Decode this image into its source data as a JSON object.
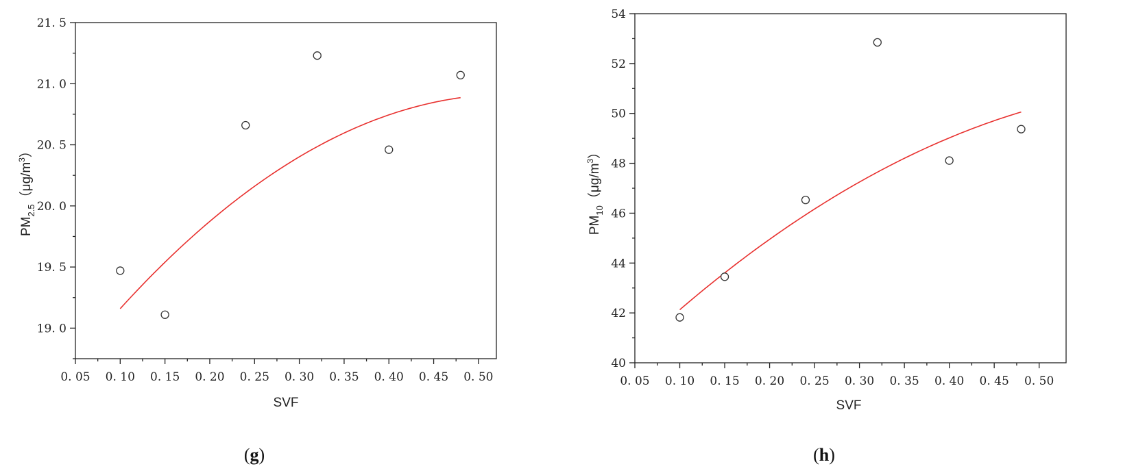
{
  "chart_data": [
    {
      "type": "scatter",
      "panel_label": "g",
      "xlabel": "SVF",
      "ylabel": {
        "base": "PM",
        "sub": "2.5",
        "unit_open": "（μg/m",
        "unit_sup": "3",
        "unit_close": "）"
      },
      "xlim": [
        0.05,
        0.52
      ],
      "ylim": [
        18.75,
        21.5
      ],
      "xticks": [
        0.05,
        0.1,
        0.15,
        0.2,
        0.25,
        0.3,
        0.35,
        0.4,
        0.45,
        0.5
      ],
      "xtick_labels": [
        "0. 05",
        "0. 10",
        "0. 15",
        "0. 20",
        "0. 25",
        "0. 30",
        "0. 35",
        "0. 40",
        "0. 45",
        "0. 50"
      ],
      "yticks": [
        19.0,
        19.5,
        20.0,
        20.5,
        21.0,
        21.5
      ],
      "ytick_labels": [
        "19. 0",
        "19. 5",
        "20. 0",
        "20. 5",
        "21. 0",
        "21. 5"
      ],
      "points": [
        {
          "x": 0.1,
          "y": 19.47
        },
        {
          "x": 0.15,
          "y": 19.11
        },
        {
          "x": 0.24,
          "y": 20.66
        },
        {
          "x": 0.32,
          "y": 21.23
        },
        {
          "x": 0.4,
          "y": 20.46
        },
        {
          "x": 0.48,
          "y": 21.07
        }
      ],
      "fit": {
        "kind": "quadratic",
        "a": -9.27,
        "b": 9.92,
        "c": 18.26,
        "x_range": [
          0.1,
          0.48
        ]
      },
      "fit_color": "#e8302e",
      "grid": false
    },
    {
      "type": "scatter",
      "panel_label": "h",
      "xlabel": "SVF",
      "ylabel": {
        "base": "PM",
        "sub": "10",
        "unit_open": "（μg/m",
        "unit_sup": "3",
        "unit_close": "）"
      },
      "xlim": [
        0.05,
        0.53
      ],
      "ylim": [
        40,
        54
      ],
      "xticks": [
        0.05,
        0.1,
        0.15,
        0.2,
        0.25,
        0.3,
        0.35,
        0.4,
        0.45,
        0.5
      ],
      "xtick_labels": [
        "0. 05",
        "0. 10",
        "0. 15",
        "0. 20",
        "0. 25",
        "0. 30",
        "0. 35",
        "0. 40",
        "0. 45",
        "0. 50"
      ],
      "yticks": [
        40,
        42,
        44,
        46,
        48,
        50,
        52,
        54
      ],
      "ytick_labels": [
        "40",
        "42",
        "44",
        "46",
        "48",
        "50",
        "52",
        "54"
      ],
      "points": [
        {
          "x": 0.1,
          "y": 41.82
        },
        {
          "x": 0.15,
          "y": 43.45
        },
        {
          "x": 0.24,
          "y": 46.53
        },
        {
          "x": 0.32,
          "y": 52.85
        },
        {
          "x": 0.4,
          "y": 48.11
        },
        {
          "x": 0.48,
          "y": 49.37
        }
      ],
      "fit": {
        "kind": "quadratic",
        "a": -26.3,
        "b": 36.12,
        "c": 38.78,
        "x_range": [
          0.1,
          0.48
        ]
      },
      "fit_color": "#e8302e",
      "grid": false
    }
  ]
}
